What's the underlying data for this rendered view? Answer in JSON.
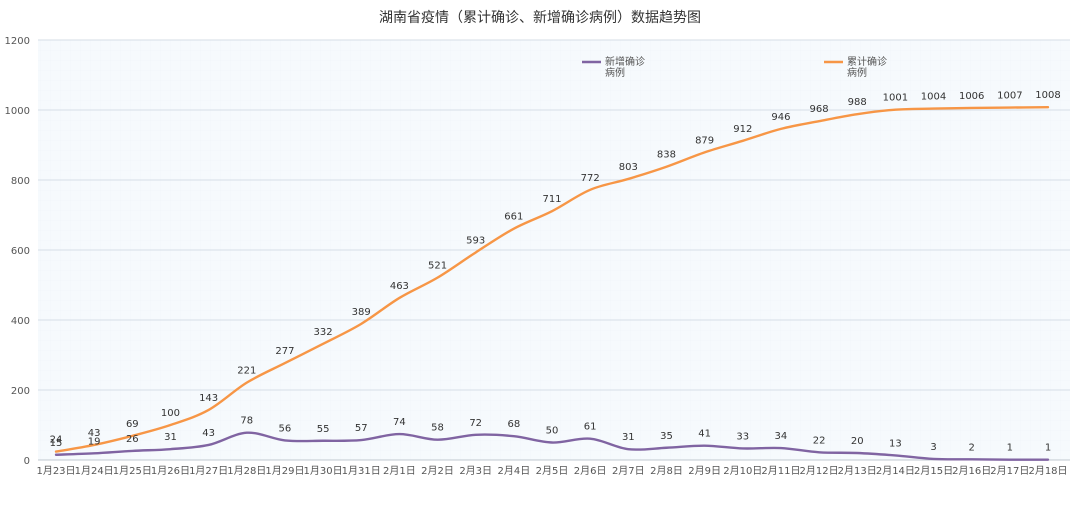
{
  "chart_data": {
    "type": "line",
    "title": "湖南省疫情（累计确诊、新增确诊病例）数据趋势图",
    "categories": [
      "1月23日",
      "1月24日",
      "1月25日",
      "1月26日",
      "1月27日",
      "1月28日",
      "1月29日",
      "1月30日",
      "1月31日",
      "2月1日",
      "2月2日",
      "2月3日",
      "2月4日",
      "2月5日",
      "2月6日",
      "2月7日",
      "2月8日",
      "2月9日",
      "2月10日",
      "2月11日",
      "2月12日",
      "2月13日",
      "2月14日",
      "2月15日",
      "2月16日",
      "2月17日",
      "2月18日"
    ],
    "series": [
      {
        "name": "新增确诊病例",
        "legend_lines": [
          "新增确诊",
          "病例"
        ],
        "color": "#8064a2",
        "values": [
          15,
          19,
          26,
          31,
          43,
          78,
          56,
          55,
          57,
          74,
          58,
          72,
          68,
          50,
          61,
          31,
          35,
          41,
          33,
          34,
          22,
          20,
          13,
          3,
          2,
          1,
          1
        ]
      },
      {
        "name": "累计确诊病例",
        "legend_lines": [
          "累计确诊",
          "病例"
        ],
        "color": "#f79646",
        "values": [
          24,
          43,
          69,
          100,
          143,
          221,
          277,
          332,
          389,
          463,
          521,
          593,
          661,
          711,
          772,
          803,
          838,
          879,
          912,
          946,
          968,
          988,
          1001,
          1004,
          1006,
          1007,
          1008
        ]
      }
    ],
    "ylim": [
      0,
      1200
    ],
    "yticks": [
      0,
      200,
      400,
      600,
      800,
      1000,
      1200
    ],
    "grid": true,
    "legend": "top"
  }
}
